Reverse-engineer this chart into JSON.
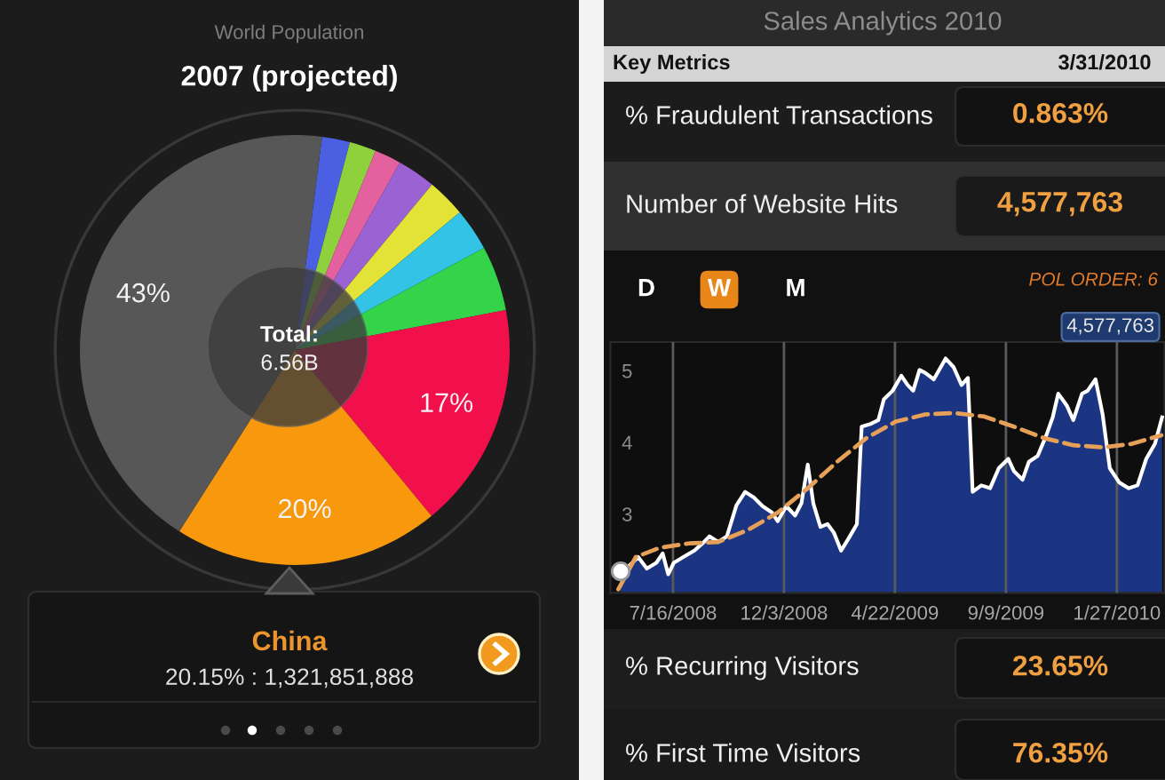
{
  "chart_data": [
    {
      "type": "pie",
      "title": "World Population",
      "subtitle": "2007 (projected)",
      "categories": [
        null,
        null,
        null,
        null,
        null,
        null,
        null,
        null,
        null,
        null
      ],
      "values": [
        2.1,
        2.0,
        2.0,
        2.9,
        2.9,
        3.2,
        4.9,
        17,
        20,
        43
      ],
      "colors": [
        "#4b5fe3",
        "#8fd13c",
        "#e2619e",
        "#9b62d3",
        "#e3e236",
        "#33c3e6",
        "#33d449",
        "#f2104c",
        "#f7980d",
        "#575757"
      ],
      "value_labels": [
        null,
        null,
        null,
        null,
        null,
        null,
        null,
        "17%",
        "20%",
        "43%"
      ],
      "annotations": [
        "Total:",
        "6.56B",
        "China",
        "20.15% : 1,321,851,888"
      ]
    },
    {
      "type": "other",
      "title": "Sales Analytics 2010",
      "annotations": [
        "Key Metrics",
        "3/31/2010",
        "% Fraudulent Transactions",
        "0.863%",
        "Number of Website Hits",
        "4,577,763"
      ]
    },
    {
      "type": "area",
      "x": [
        "2008-05-11",
        "2008-05-22",
        "2008-06-02",
        "2008-06-13",
        "2008-06-25",
        "2008-07-03",
        "2008-07-10",
        "2008-07-17",
        "2008-07-29",
        "2008-08-12",
        "2008-08-24",
        "2008-08-31",
        "2008-09-11",
        "2008-09-22",
        "2008-10-04",
        "2008-10-15",
        "2008-10-26",
        "2008-11-06",
        "2008-11-18",
        "2008-11-25",
        "2008-12-06",
        "2008-12-17",
        "2008-12-25",
        "2009-01-02",
        "2009-01-09",
        "2009-01-18",
        "2009-01-27",
        "2009-02-04",
        "2009-02-13",
        "2009-02-22",
        "2009-03-05",
        "2009-03-11",
        "2009-03-23",
        "2009-04-01",
        "2009-04-08",
        "2009-04-19",
        "2009-04-30",
        "2009-05-08",
        "2009-05-15",
        "2009-05-23",
        "2009-05-30",
        "2009-06-10",
        "2009-06-25",
        "2009-07-05",
        "2009-07-15",
        "2009-07-23",
        "2009-07-29",
        "2009-08-09",
        "2009-08-20",
        "2009-08-31",
        "2009-09-12",
        "2009-09-19",
        "2009-09-30",
        "2009-10-08",
        "2009-10-19",
        "2009-10-30",
        "2009-11-07",
        "2009-11-14",
        "2009-11-25",
        "2009-12-03",
        "2009-12-14",
        "2009-12-21",
        "2009-12-31",
        "2010-01-09",
        "2010-01-18",
        "2010-01-30",
        "2010-02-11",
        "2010-02-22",
        "2010-03-05",
        "2010-03-16",
        "2010-03-25"
      ],
      "xlim": [
        "2008-04-28",
        "2010-03-28"
      ],
      "ylim": [
        1.9,
        5.4
      ],
      "xticks": [
        {
          "value": "2008-07-16",
          "label": "7/16/2008"
        },
        {
          "value": "2008-12-03",
          "label": "12/3/2008"
        },
        {
          "value": "2009-04-22",
          "label": "4/22/2009"
        },
        {
          "value": "2009-09-09",
          "label": "9/9/2009"
        },
        {
          "value": "2010-01-27",
          "label": "1/27/2010"
        }
      ],
      "yticks": [
        3,
        4,
        5
      ],
      "grid": "x",
      "series": [
        {
          "type": "area",
          "color": "#1b3583",
          "values": [
            2.2,
            2.28,
            2.4,
            2.24,
            2.32,
            2.45,
            2.16,
            2.32,
            2.4,
            2.49,
            2.61,
            2.69,
            2.61,
            2.69,
            3.12,
            3.31,
            3.23,
            3.11,
            3.02,
            2.9,
            3.11,
            2.98,
            3.15,
            3.69,
            3.15,
            2.82,
            2.86,
            2.74,
            2.49,
            2.65,
            2.86,
            4.22,
            4.26,
            4.31,
            4.6,
            4.72,
            4.93,
            4.8,
            4.72,
            5.01,
            4.97,
            4.88,
            5.17,
            5.05,
            4.8,
            4.9,
            3.31,
            3.4,
            3.36,
            3.64,
            3.77,
            3.6,
            3.48,
            3.73,
            3.81,
            4.1,
            4.35,
            4.68,
            4.51,
            4.31,
            4.68,
            4.72,
            4.88,
            4.39,
            3.64,
            3.44,
            3.36,
            3.4,
            3.77,
            3.98,
            4.35
          ]
        },
        {
          "type": "line",
          "color": "#e6a057",
          "line_style": "dashed",
          "x": [
            "2008-05-08",
            "2008-05-30",
            "2008-06-29",
            "2008-08-05",
            "2008-09-11",
            "2008-10-19",
            "2008-11-25",
            "2009-01-02",
            "2009-02-08",
            "2009-03-17",
            "2009-04-23",
            "2009-05-30",
            "2009-07-06",
            "2009-08-13",
            "2009-09-19",
            "2009-10-27",
            "2009-12-03",
            "2010-01-10",
            "2010-02-15",
            "2010-03-24"
          ],
          "values": [
            1.95,
            2.4,
            2.53,
            2.59,
            2.61,
            2.78,
            3.02,
            3.36,
            3.73,
            4.06,
            4.29,
            4.39,
            4.41,
            4.36,
            4.22,
            4.06,
            3.96,
            3.93,
            3.98,
            4.1
          ]
        }
      ],
      "annotations": [
        "D",
        "W",
        "M",
        "POL ORDER: 6",
        "4,577,763"
      ]
    },
    {
      "type": "other",
      "annotations": [
        "% Recurring Visitors",
        "23.65%",
        "% First Time Visitors",
        "76.35%"
      ]
    }
  ]
}
